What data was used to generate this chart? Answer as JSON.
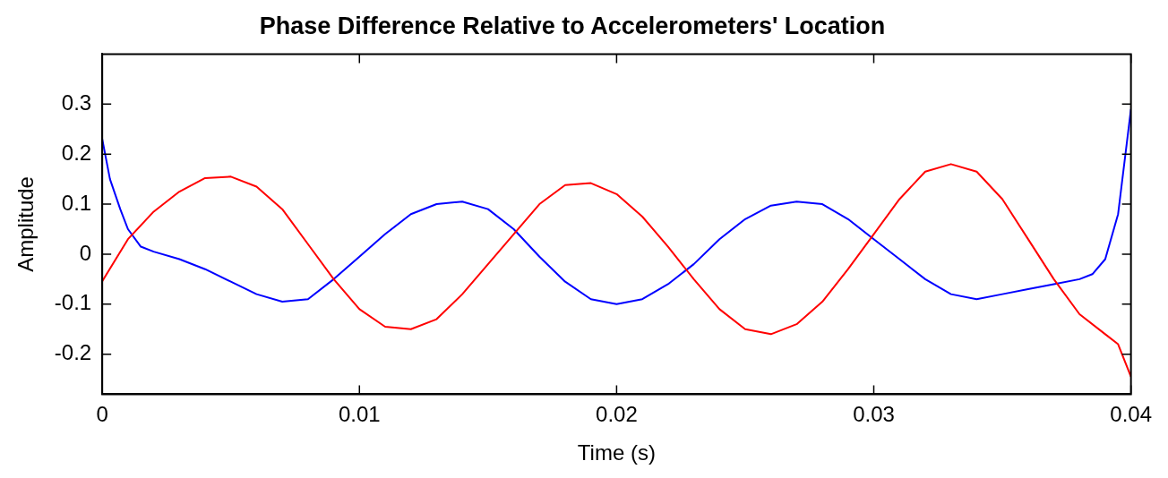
{
  "chart_data": {
    "type": "line",
    "title": "Phase Difference Relative to Accelerometers' Location",
    "xlabel": "Time (s)",
    "ylabel": "Amplitude",
    "xlim": [
      0,
      0.04
    ],
    "xticks": [
      0,
      0.01,
      0.02,
      0.03,
      0.04
    ],
    "ylim": [
      -0.28,
      0.4
    ],
    "yticks": [
      -0.2,
      -0.1,
      0,
      0.1,
      0.2,
      0.3
    ],
    "grid": false,
    "legend": false,
    "marker": "none",
    "line_style": "solid",
    "series": [
      {
        "color": "#ff0000",
        "x": [
          0,
          0.001,
          0.002,
          0.003,
          0.004,
          0.005,
          0.006,
          0.007,
          0.008,
          0.009,
          0.01,
          0.011,
          0.012,
          0.013,
          0.014,
          0.015,
          0.016,
          0.017,
          0.018,
          0.019,
          0.02,
          0.021,
          0.022,
          0.023,
          0.024,
          0.025,
          0.026,
          0.027,
          0.028,
          0.029,
          0.03,
          0.031,
          0.032,
          0.033,
          0.034,
          0.035,
          0.036,
          0.037,
          0.038,
          0.039,
          0.0395,
          0.04
        ],
        "values": [
          -0.054,
          0.03,
          0.085,
          0.125,
          0.152,
          0.155,
          0.135,
          0.09,
          0.02,
          -0.05,
          -0.11,
          -0.145,
          -0.15,
          -0.13,
          -0.08,
          -0.02,
          0.04,
          0.1,
          0.138,
          0.142,
          0.12,
          0.075,
          0.015,
          -0.05,
          -0.11,
          -0.15,
          -0.16,
          -0.14,
          -0.095,
          -0.03,
          0.04,
          0.11,
          0.165,
          0.18,
          0.165,
          0.11,
          0.03,
          -0.05,
          -0.12,
          -0.16,
          -0.18,
          -0.245
        ]
      },
      {
        "color": "#0000ff",
        "x": [
          0,
          0.0003,
          0.0007,
          0.001,
          0.0015,
          0.002,
          0.003,
          0.004,
          0.005,
          0.006,
          0.007,
          0.008,
          0.009,
          0.01,
          0.011,
          0.012,
          0.013,
          0.014,
          0.015,
          0.016,
          0.017,
          0.018,
          0.019,
          0.02,
          0.021,
          0.022,
          0.023,
          0.024,
          0.025,
          0.026,
          0.027,
          0.028,
          0.029,
          0.03,
          0.031,
          0.032,
          0.033,
          0.034,
          0.035,
          0.036,
          0.037,
          0.038,
          0.0385,
          0.039,
          0.0395,
          0.04
        ],
        "values": [
          0.23,
          0.15,
          0.09,
          0.05,
          0.015,
          0.005,
          -0.01,
          -0.03,
          -0.055,
          -0.08,
          -0.095,
          -0.09,
          -0.05,
          -0.005,
          0.04,
          0.08,
          0.1,
          0.105,
          0.09,
          0.05,
          -0.005,
          -0.055,
          -0.09,
          -0.1,
          -0.09,
          -0.06,
          -0.02,
          0.03,
          0.07,
          0.097,
          0.105,
          0.1,
          0.07,
          0.03,
          -0.01,
          -0.05,
          -0.08,
          -0.09,
          -0.08,
          -0.07,
          -0.06,
          -0.05,
          -0.04,
          -0.01,
          0.08,
          0.29
        ]
      }
    ]
  }
}
